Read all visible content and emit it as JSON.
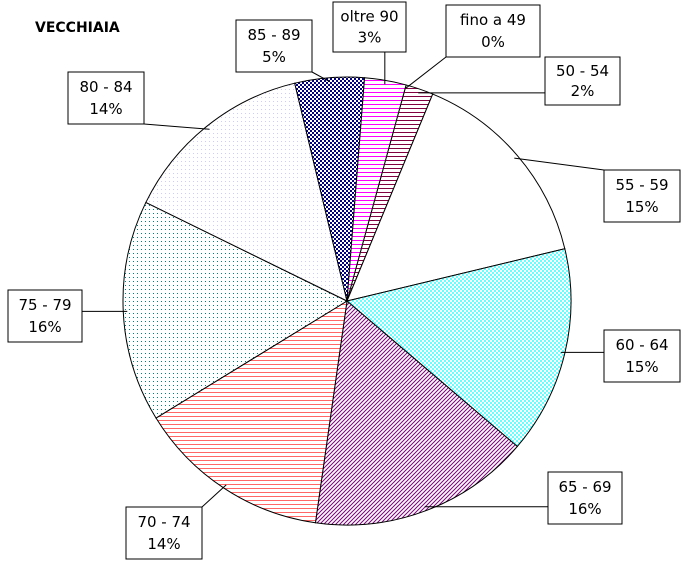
{
  "chart_data": {
    "type": "pie",
    "title": "VECCHIAIA",
    "categories": [
      "fino a 49",
      "50 - 54",
      "55 - 59",
      "60 - 64",
      "65 - 69",
      "70 - 74",
      "75 - 79",
      "80 - 84",
      "85 - 89",
      "oltre 90"
    ],
    "values": [
      0,
      2,
      15,
      15,
      16,
      14,
      16,
      14,
      5,
      3
    ],
    "value_labels": [
      "0%",
      "2%",
      "15%",
      "15%",
      "16%",
      "14%",
      "16%",
      "14%",
      "5%",
      "3%"
    ],
    "colors": [
      "#800040",
      "#800040",
      "#ffffff",
      "#66ffff",
      "#800080",
      "#ff6666",
      "#008080",
      "#ccccff",
      "#000080",
      "#ff00ff"
    ],
    "patterns": [
      "stripes",
      "stripes",
      "solid",
      "checker",
      "waves",
      "stripes",
      "dots",
      "dots",
      "checker",
      "stripes"
    ]
  }
}
